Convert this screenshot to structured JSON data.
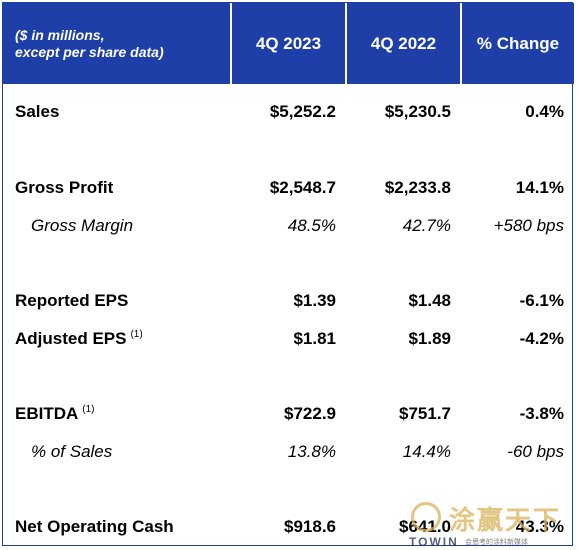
{
  "header": {
    "label_line1": "($ in millions,",
    "label_line2": "except per share data)",
    "col_q4_2023": "4Q 2023",
    "col_q4_2022": "4Q 2022",
    "col_change": "% Change"
  },
  "rows": {
    "sales": {
      "label": "Sales",
      "q4_2023": "$5,252.2",
      "q4_2022": "$5,230.5",
      "change": "0.4%"
    },
    "gross_profit": {
      "label": "Gross Profit",
      "q4_2023": "$2,548.7",
      "q4_2022": "$2,233.8",
      "change": "14.1%"
    },
    "gross_margin": {
      "label": "Gross Margin",
      "q4_2023": "48.5%",
      "q4_2022": "42.7%",
      "change": "+580 bps"
    },
    "reported_eps": {
      "label": "Reported EPS",
      "q4_2023": "$1.39",
      "q4_2022": "$1.48",
      "change": "-6.1%"
    },
    "adjusted_eps": {
      "label": "Adjusted EPS",
      "footnote": "(1)",
      "q4_2023": "$1.81",
      "q4_2022": "$1.89",
      "change": "-4.2%"
    },
    "ebitda": {
      "label": "EBITDA",
      "footnote": "(1)",
      "q4_2023": "$722.9",
      "q4_2022": "$751.7",
      "change": "-3.8%"
    },
    "pct_of_sales": {
      "label": "% of Sales",
      "q4_2023": "13.8%",
      "q4_2022": "14.4%",
      "change": "-60 bps"
    },
    "net_operating_cash": {
      "label": "Net Operating Cash",
      "q4_2023": "$918.6",
      "q4_2022": "$641.0",
      "change": "43.3%"
    }
  },
  "watermark": {
    "chinese": "涂赢天下",
    "english": "TOWIN",
    "tagline": "会思考的涂料新媒体"
  },
  "colors": {
    "header_bg": "#1f3fa8",
    "header_text": "#ffffff",
    "watermark_gold": "#d9b25a"
  }
}
